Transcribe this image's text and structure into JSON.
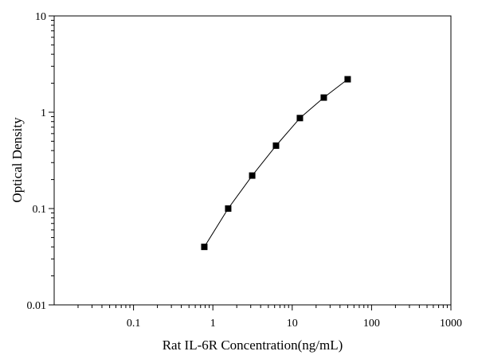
{
  "chart_data": {
    "type": "scatter",
    "title": "",
    "xlabel": "Rat IL-6R Concentration(ng/mL)",
    "ylabel": "Optical Density",
    "x_scale": "log",
    "y_scale": "log",
    "xlim": [
      0.01,
      1000
    ],
    "ylim": [
      0.01,
      10
    ],
    "grid": false,
    "x_ticks": [
      {
        "value": 0.1,
        "label": "0.1"
      },
      {
        "value": 1,
        "label": "1"
      },
      {
        "value": 10,
        "label": "10"
      },
      {
        "value": 100,
        "label": "100"
      },
      {
        "value": 1000,
        "label": "1000"
      }
    ],
    "y_ticks": [
      {
        "value": 0.01,
        "label": "0.01"
      },
      {
        "value": 0.1,
        "label": "0.1"
      },
      {
        "value": 1,
        "label": "1"
      },
      {
        "value": 10,
        "label": "10"
      }
    ],
    "series": [
      {
        "color": "#000000",
        "marker": "square",
        "line": true,
        "x": [
          0.78,
          1.56,
          3.13,
          6.25,
          12.5,
          25,
          50
        ],
        "y": [
          0.04,
          0.1,
          0.22,
          0.45,
          0.87,
          1.42,
          2.2
        ]
      }
    ]
  }
}
